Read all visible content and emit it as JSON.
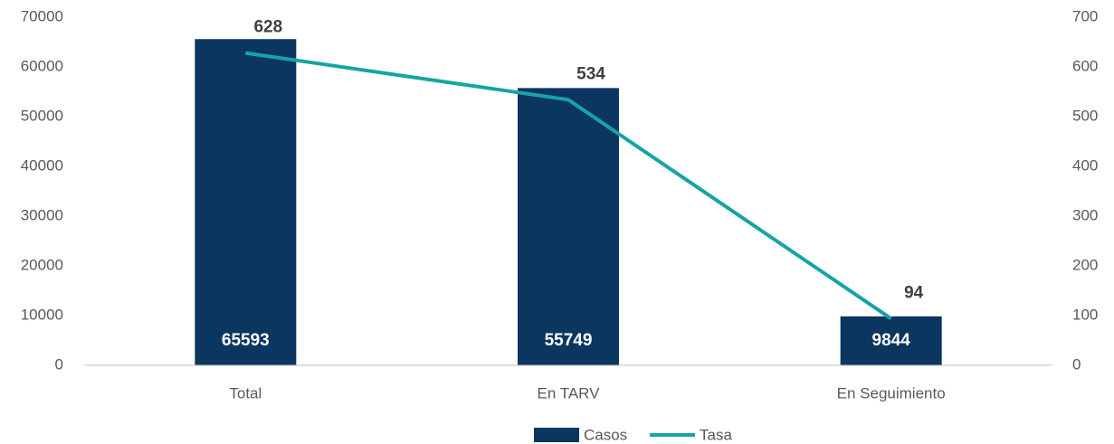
{
  "chart_data": {
    "type": "bar",
    "categories": [
      "Total",
      "En TARV",
      "En Seguimiento"
    ],
    "series": [
      {
        "name": "Casos",
        "type": "bar",
        "color": "#0b3660",
        "values": [
          65593,
          55749,
          9844
        ]
      },
      {
        "name": "Tasa",
        "type": "line",
        "axis": "y2",
        "color": "#17a3a7",
        "values": [
          628,
          534,
          94
        ]
      }
    ],
    "ylim": [
      0,
      70000
    ],
    "yticks": [
      0,
      10000,
      20000,
      30000,
      40000,
      50000,
      60000,
      70000
    ],
    "y2lim": [
      0,
      700
    ],
    "y2ticks": [
      0,
      100,
      200,
      300,
      400,
      500,
      600,
      700
    ],
    "grid": false,
    "legend": "bottom"
  }
}
